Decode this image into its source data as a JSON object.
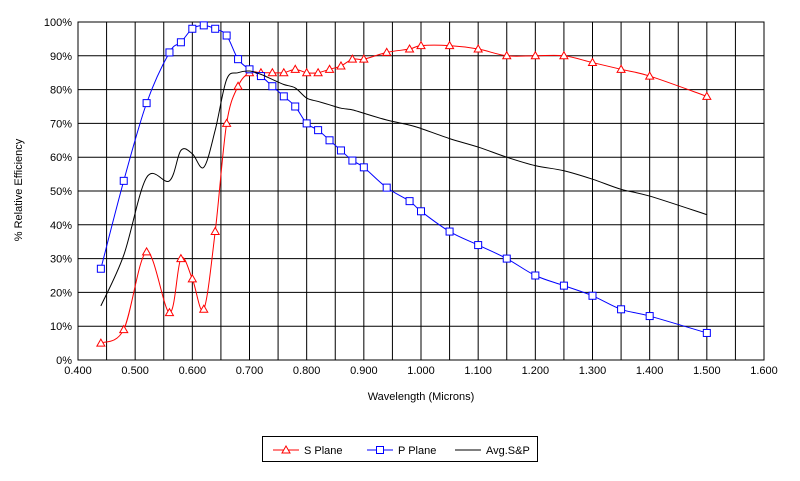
{
  "chart_data": {
    "type": "line",
    "xlabel": "Wavelength (Microns)",
    "ylabel": "% Relative Efficiency",
    "xlim": [
      0.4,
      1.6
    ],
    "ylim": [
      0,
      100
    ],
    "x_ticks": [
      "0.400",
      "0.500",
      "0.600",
      "0.700",
      "0.800",
      "0.900",
      "1.000",
      "1.100",
      "1.200",
      "1.300",
      "1.400",
      "1.500",
      "1.600"
    ],
    "x_tick_values": [
      0.4,
      0.5,
      0.6,
      0.7,
      0.8,
      0.9,
      1.0,
      1.1,
      1.2,
      1.3,
      1.4,
      1.5,
      1.6
    ],
    "y_ticks": [
      "0%",
      "10%",
      "20%",
      "30%",
      "40%",
      "50%",
      "60%",
      "70%",
      "80%",
      "90%",
      "100%"
    ],
    "y_tick_values": [
      0,
      10,
      20,
      30,
      40,
      50,
      60,
      70,
      80,
      90,
      100
    ],
    "x_minor_gridlines": [
      0.45,
      0.55,
      0.65,
      0.75,
      0.85,
      0.95,
      1.05,
      1.15,
      1.25,
      1.35,
      1.45,
      1.55
    ],
    "grid": true,
    "legend_position": "bottom-center",
    "series": [
      {
        "name": "S Plane",
        "color": "#ff0000",
        "marker": "triangle",
        "x": [
          0.44,
          0.48,
          0.52,
          0.56,
          0.58,
          0.6,
          0.62,
          0.64,
          0.66,
          0.68,
          0.7,
          0.72,
          0.74,
          0.76,
          0.78,
          0.8,
          0.82,
          0.84,
          0.86,
          0.88,
          0.9,
          0.94,
          0.98,
          1.0,
          1.05,
          1.1,
          1.15,
          1.2,
          1.25,
          1.3,
          1.35,
          1.4,
          1.5
        ],
        "y": [
          5,
          9,
          32,
          14,
          30,
          24,
          15,
          38,
          70,
          81,
          85,
          85,
          85,
          85,
          86,
          85,
          85,
          86,
          87,
          89,
          89,
          91,
          92,
          93,
          93,
          92,
          90,
          90,
          90,
          88,
          86,
          84,
          78
        ]
      },
      {
        "name": "P Plane",
        "color": "#0000ff",
        "marker": "square",
        "x": [
          0.44,
          0.48,
          0.52,
          0.56,
          0.58,
          0.6,
          0.62,
          0.64,
          0.66,
          0.68,
          0.7,
          0.72,
          0.74,
          0.76,
          0.78,
          0.8,
          0.82,
          0.84,
          0.86,
          0.88,
          0.9,
          0.94,
          0.98,
          1.0,
          1.05,
          1.1,
          1.15,
          1.2,
          1.25,
          1.3,
          1.35,
          1.4,
          1.5
        ],
        "y": [
          27,
          53,
          76,
          91,
          94,
          98,
          99,
          98,
          96,
          89,
          86,
          84,
          81,
          78,
          75,
          70,
          68,
          65,
          62,
          59,
          57,
          51,
          47,
          44,
          38,
          34,
          30,
          25,
          22,
          19,
          15,
          13,
          8
        ]
      },
      {
        "name": "Avg.S&P",
        "color": "#000000",
        "marker": "none",
        "x": [
          0.44,
          0.48,
          0.52,
          0.56,
          0.58,
          0.6,
          0.62,
          0.64,
          0.66,
          0.68,
          0.7,
          0.72,
          0.74,
          0.76,
          0.78,
          0.8,
          0.82,
          0.84,
          0.86,
          0.88,
          0.9,
          0.94,
          0.98,
          1.0,
          1.05,
          1.1,
          1.15,
          1.2,
          1.25,
          1.3,
          1.35,
          1.4,
          1.5
        ],
        "y": [
          16,
          31,
          54,
          53,
          62,
          61,
          57,
          68,
          83,
          85,
          85.5,
          84.5,
          83,
          81.5,
          80.5,
          77.5,
          76.5,
          75.5,
          74.5,
          74,
          73,
          71,
          69.5,
          68.5,
          65.5,
          63,
          60,
          57.5,
          56,
          53.5,
          50.5,
          48.5,
          43
        ]
      }
    ]
  }
}
